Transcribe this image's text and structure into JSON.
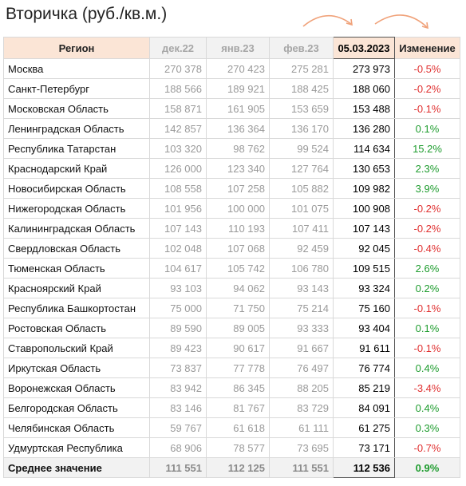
{
  "title": "Вторичка (руб./кв.м.)",
  "headers": {
    "region": "Регион",
    "c1": "дек.22",
    "c2": "янв.23",
    "c3": "фев.23",
    "current": "05.03.2023",
    "change": "Изменение"
  },
  "colors": {
    "header_bg": "#fbe5d6",
    "negative": "#e03030",
    "positive": "#1e9c2e",
    "muted": "#9a9a9a",
    "arrow": "#f0a27a"
  },
  "rows": [
    {
      "region": "Москва",
      "c1": "270 378",
      "c2": "270 423",
      "c3": "275 281",
      "current": "273 973",
      "change": "-0.5%",
      "sign": "neg"
    },
    {
      "region": "Санкт-Петербург",
      "c1": "188 566",
      "c2": "189 921",
      "c3": "188 425",
      "current": "188 060",
      "change": "-0.2%",
      "sign": "neg"
    },
    {
      "region": "Московская Область",
      "c1": "158 871",
      "c2": "161 905",
      "c3": "153 659",
      "current": "153 488",
      "change": "-0.1%",
      "sign": "neg"
    },
    {
      "region": "Ленинградская Область",
      "c1": "142 857",
      "c2": "136 364",
      "c3": "136 170",
      "current": "136 280",
      "change": "0.1%",
      "sign": "pos"
    },
    {
      "region": "Республика Татарстан",
      "c1": "103 320",
      "c2": "98 762",
      "c3": "99 524",
      "current": "114 634",
      "change": "15.2%",
      "sign": "pos"
    },
    {
      "region": "Краснодарский Край",
      "c1": "126 000",
      "c2": "123 340",
      "c3": "127 764",
      "current": "130 653",
      "change": "2.3%",
      "sign": "pos"
    },
    {
      "region": "Новосибирская Область",
      "c1": "108 558",
      "c2": "107 258",
      "c3": "105 882",
      "current": "109 982",
      "change": "3.9%",
      "sign": "pos"
    },
    {
      "region": "Нижегородская Область",
      "c1": "101 956",
      "c2": "100 000",
      "c3": "101 075",
      "current": "100 908",
      "change": "-0.2%",
      "sign": "neg"
    },
    {
      "region": "Калининградская Область",
      "c1": "107 143",
      "c2": "110 193",
      "c3": "107 411",
      "current": "107 143",
      "change": "-0.2%",
      "sign": "neg"
    },
    {
      "region": "Свердловская Область",
      "c1": "102 048",
      "c2": "107 068",
      "c3": "92 459",
      "current": "92 045",
      "change": "-0.4%",
      "sign": "neg"
    },
    {
      "region": "Тюменская Область",
      "c1": "104 617",
      "c2": "105 742",
      "c3": "106 780",
      "current": "109 515",
      "change": "2.6%",
      "sign": "pos"
    },
    {
      "region": "Красноярский Край",
      "c1": "93 103",
      "c2": "94 062",
      "c3": "93 143",
      "current": "93 324",
      "change": "0.2%",
      "sign": "pos"
    },
    {
      "region": "Республика Башкортостан",
      "c1": "75 000",
      "c2": "71 750",
      "c3": "75 214",
      "current": "75 160",
      "change": "-0.1%",
      "sign": "neg"
    },
    {
      "region": "Ростовская Область",
      "c1": "89 590",
      "c2": "89 005",
      "c3": "93 333",
      "current": "93 404",
      "change": "0.1%",
      "sign": "pos"
    },
    {
      "region": "Ставропольский Край",
      "c1": "89 423",
      "c2": "90 617",
      "c3": "91 667",
      "current": "91 611",
      "change": "-0.1%",
      "sign": "neg"
    },
    {
      "region": "Иркутская Область",
      "c1": "73 837",
      "c2": "77 778",
      "c3": "76 497",
      "current": "76 774",
      "change": "0.4%",
      "sign": "pos"
    },
    {
      "region": "Воронежская Область",
      "c1": "83 942",
      "c2": "86 345",
      "c3": "88 205",
      "current": "85 219",
      "change": "-3.4%",
      "sign": "neg"
    },
    {
      "region": "Белгородская Область",
      "c1": "83 146",
      "c2": "81 767",
      "c3": "83 729",
      "current": "84 091",
      "change": "0.4%",
      "sign": "pos"
    },
    {
      "region": "Челябинская Область",
      "c1": "59 767",
      "c2": "61 618",
      "c3": "61 111",
      "current": "61 275",
      "change": "0.3%",
      "sign": "pos"
    },
    {
      "region": "Удмуртская Республика",
      "c1": "68 906",
      "c2": "78 577",
      "c3": "73 695",
      "current": "73 171",
      "change": "-0.7%",
      "sign": "neg"
    }
  ],
  "average": {
    "region": "Среднее значение",
    "c1": "111 551",
    "c2": "112 125",
    "c3": "111 551",
    "current": "112 536",
    "change": "0.9%",
    "sign": "pos"
  }
}
